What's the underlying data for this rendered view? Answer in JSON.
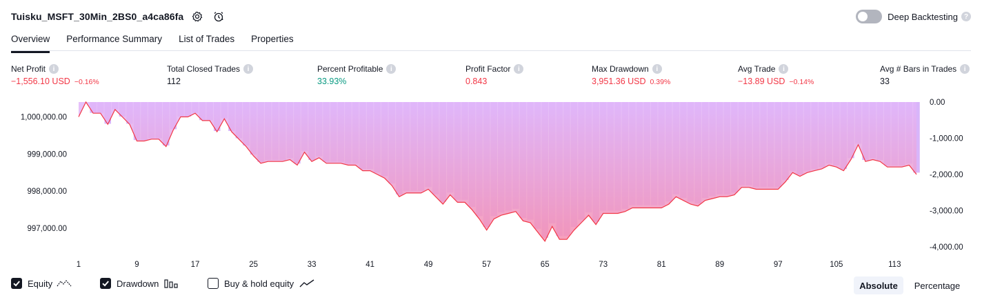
{
  "header": {
    "strategy_name": "Tuisku_MSFT_30Min_2BS0_a4ca86fa",
    "deep_backtesting_label": "Deep Backtesting",
    "deep_backtesting_enabled": false
  },
  "tabs": [
    {
      "label": "Overview",
      "active": true
    },
    {
      "label": "Performance Summary",
      "active": false
    },
    {
      "label": "List of Trades",
      "active": false
    },
    {
      "label": "Properties",
      "active": false
    }
  ],
  "metrics": [
    {
      "label": "Net Profit",
      "value": "−1,556.10 USD",
      "pct": "−0.16%",
      "tone": "neg"
    },
    {
      "label": "Total Closed Trades",
      "value": "112",
      "pct": "",
      "tone": "neu"
    },
    {
      "label": "Percent Profitable",
      "value": "33.93%",
      "pct": "",
      "tone": "pos"
    },
    {
      "label": "Profit Factor",
      "value": "0.843",
      "pct": "",
      "tone": "neg"
    },
    {
      "label": "Max Drawdown",
      "value": "3,951.36 USD",
      "pct": "0.39%",
      "tone": "neg"
    },
    {
      "label": "Avg Trade",
      "value": "−13.89 USD",
      "pct": "−0.14%",
      "tone": "neg"
    },
    {
      "label": "Avg # Bars in Trades",
      "value": "33",
      "pct": "",
      "tone": "neu"
    }
  ],
  "chart_data": {
    "type": "line",
    "x_ticks": [
      "1",
      "9",
      "17",
      "25",
      "33",
      "41",
      "49",
      "57",
      "65",
      "73",
      "81",
      "89",
      "97",
      "105",
      "113"
    ],
    "left_axis": {
      "ticks": [
        "1,000,000.00",
        "999,000.00",
        "998,000.00",
        "997,000.00"
      ],
      "values": [
        1000000,
        999000,
        998000,
        997000
      ],
      "range": [
        996500,
        1000400
      ]
    },
    "right_axis": {
      "ticks": [
        "0.00",
        "-1,000.00",
        "-2,000.00",
        "-3,000.00",
        "-4,000.00"
      ],
      "values": [
        0,
        -1000,
        -2000,
        -3000,
        -4000
      ],
      "range": [
        -4000,
        0
      ]
    },
    "series": [
      {
        "name": "Equity",
        "axis": "left",
        "color": "#f23645",
        "values": [
          1000000,
          1000400,
          1000100,
          1000100,
          999800,
          1000200,
          1000000,
          999800,
          999350,
          999350,
          999400,
          999400,
          999200,
          999650,
          1000000,
          1000000,
          1000100,
          999900,
          999900,
          999600,
          999950,
          999600,
          999400,
          999200,
          998950,
          998750,
          998800,
          998800,
          998800,
          998850,
          998700,
          999050,
          998800,
          998900,
          998750,
          998750,
          998750,
          998700,
          998700,
          998550,
          998550,
          998450,
          998350,
          998150,
          997850,
          997950,
          997950,
          997950,
          998050,
          997850,
          997650,
          997900,
          997700,
          997700,
          997500,
          997250,
          996950,
          997250,
          997350,
          997400,
          997450,
          997200,
          997150,
          996900,
          996650,
          997050,
          996700,
          996700,
          996950,
          997150,
          997350,
          997100,
          997400,
          997400,
          997400,
          997450,
          997550,
          997550,
          997550,
          997550,
          997550,
          997650,
          997850,
          997750,
          997650,
          997600,
          997750,
          997800,
          997850,
          997850,
          997900,
          998100,
          998100,
          998050,
          998050,
          998050,
          998050,
          998250,
          998500,
          998400,
          998500,
          998550,
          998600,
          998700,
          998650,
          998550,
          998850,
          999250,
          998800,
          998850,
          998800,
          998650,
          998650,
          998650,
          998700,
          998450
        ]
      },
      {
        "name": "Drawdown",
        "axis": "right",
        "color": "#d1a8f9",
        "values": [
          0,
          0,
          -300,
          -300,
          -600,
          -200,
          -400,
          -600,
          -1050,
          -1050,
          -1000,
          -1000,
          -1200,
          -750,
          -400,
          -400,
          -300,
          -500,
          -500,
          -800,
          -450,
          -800,
          -1000,
          -1200,
          -1450,
          -1650,
          -1600,
          -1600,
          -1600,
          -1550,
          -1700,
          -1350,
          -1600,
          -1500,
          -1650,
          -1650,
          -1650,
          -1700,
          -1700,
          -1850,
          -1850,
          -1950,
          -2050,
          -2250,
          -2550,
          -2450,
          -2450,
          -2450,
          -2350,
          -2550,
          -2750,
          -2500,
          -2700,
          -2700,
          -2900,
          -3150,
          -3450,
          -3150,
          -3050,
          -3000,
          -2950,
          -3200,
          -3250,
          -3500,
          -3750,
          -3350,
          -3700,
          -3700,
          -3450,
          -3250,
          -3050,
          -3300,
          -3000,
          -3000,
          -3000,
          -2950,
          -2850,
          -2850,
          -2850,
          -2850,
          -2850,
          -2750,
          -2550,
          -2650,
          -2750,
          -2800,
          -2650,
          -2600,
          -2550,
          -2550,
          -2500,
          -2300,
          -2300,
          -2350,
          -2350,
          -2350,
          -2350,
          -2150,
          -1900,
          -2000,
          -1900,
          -1850,
          -1800,
          -1700,
          -1750,
          -1850,
          -1550,
          -1150,
          -1600,
          -1550,
          -1600,
          -1750,
          -1750,
          -1750,
          -1700,
          -1950
        ]
      }
    ]
  },
  "legend": [
    {
      "label": "Equity",
      "checked": true,
      "icon": "equity-line-icon"
    },
    {
      "label": "Drawdown",
      "checked": true,
      "icon": "drawdown-bars-icon"
    },
    {
      "label": "Buy & hold equity",
      "checked": false,
      "icon": "buy-hold-line-icon"
    }
  ],
  "scale_toggle": {
    "absolute_label": "Absolute",
    "percentage_label": "Percentage",
    "active": "Absolute"
  }
}
